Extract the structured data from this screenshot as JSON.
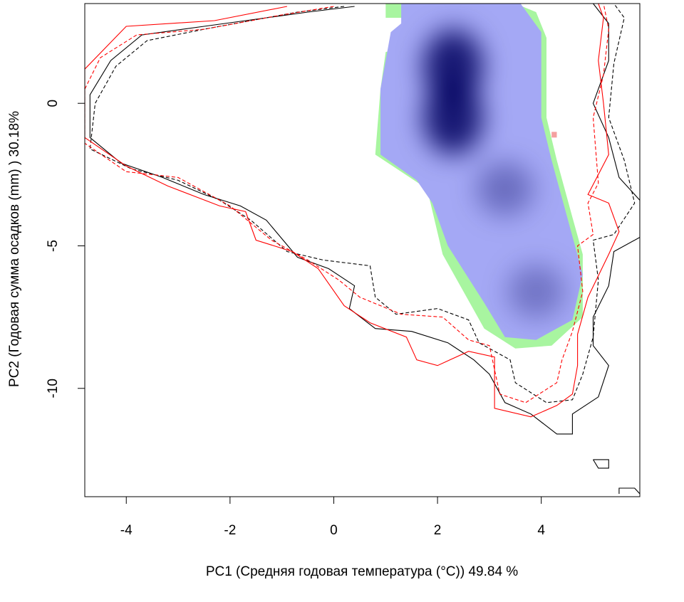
{
  "chart_data": {
    "type": "heatmap",
    "title": "",
    "xlabel": "PC1 (Средняя годовая температура (°C)) 49.84 %",
    "ylabel": "PC2 (Годовая сумма осадков  (mm) ) 30.18%",
    "xlim": [
      -4.8,
      5.9
    ],
    "ylim": [
      -13.8,
      3.5
    ],
    "x_ticks": [
      {
        "value": -4,
        "label": "-4"
      },
      {
        "value": -2,
        "label": "-2"
      },
      {
        "value": 0,
        "label": "0"
      },
      {
        "value": 2,
        "label": "2"
      },
      {
        "value": 4,
        "label": "4"
      }
    ],
    "y_ticks": [
      {
        "value": 0,
        "label": "0"
      },
      {
        "value": -5,
        "label": "-5"
      },
      {
        "value": -10,
        "label": "-10"
      }
    ],
    "grid": false,
    "legend": "none",
    "density_peaks": [
      {
        "x": 2.3,
        "y": 1.3,
        "intensity": 1.0
      },
      {
        "x": 2.3,
        "y": -0.5,
        "intensity": 1.0
      },
      {
        "x": 3.3,
        "y": -3.0,
        "intensity": 0.35
      },
      {
        "x": 3.9,
        "y": -6.6,
        "intensity": 0.3
      }
    ],
    "regions": [
      {
        "name": "overlap-zone",
        "color": "#a8f5a0",
        "points": [
          [
            0.5,
            3.5
          ],
          [
            1.0,
            3.5
          ],
          [
            1.0,
            3.0
          ],
          [
            1.5,
            3.0
          ],
          [
            1.4,
            2.0
          ],
          [
            1.0,
            1.8
          ],
          [
            0.9,
            0.5
          ],
          [
            0.8,
            -1.8
          ],
          [
            1.8,
            -3.0
          ],
          [
            2.1,
            -5.3
          ],
          [
            2.9,
            -7.9
          ],
          [
            3.5,
            -8.6
          ],
          [
            4.2,
            -8.5
          ],
          [
            4.8,
            -7.5
          ],
          [
            4.8,
            -5.3
          ],
          [
            4.6,
            -4.0
          ],
          [
            4.3,
            -2.0
          ],
          [
            4.1,
            -0.5
          ],
          [
            4.1,
            1.0
          ],
          [
            4.1,
            2.3
          ],
          [
            3.9,
            3.2
          ],
          [
            3.5,
            3.5
          ],
          [
            0.5,
            3.5
          ]
        ]
      },
      {
        "name": "density-zone",
        "color": "#a4a8f5",
        "points": [
          [
            0.9,
            3.5
          ],
          [
            1.3,
            3.5
          ],
          [
            1.3,
            2.8
          ],
          [
            1.1,
            2.5
          ],
          [
            0.9,
            0.5
          ],
          [
            0.9,
            -1.8
          ],
          [
            1.6,
            -2.7
          ],
          [
            1.9,
            -3.5
          ],
          [
            2.2,
            -5.0
          ],
          [
            2.9,
            -7.0
          ],
          [
            3.3,
            -8.2
          ],
          [
            3.9,
            -8.3
          ],
          [
            4.6,
            -7.6
          ],
          [
            4.8,
            -6.0
          ],
          [
            4.5,
            -4.0
          ],
          [
            4.2,
            -2.0
          ],
          [
            4.0,
            -0.5
          ],
          [
            4.0,
            1.0
          ],
          [
            4.0,
            2.5
          ],
          [
            3.6,
            3.5
          ],
          [
            0.9,
            3.5
          ]
        ]
      },
      {
        "name": "pink-marks",
        "color": "#f4a0a0",
        "points": [
          [
            4.2,
            -1.0
          ],
          [
            4.3,
            -1.0
          ],
          [
            4.3,
            -1.2
          ],
          [
            4.2,
            -1.2
          ]
        ]
      }
    ],
    "series": [
      {
        "color": "#000000",
        "style": "solid",
        "points": [
          [
            0.4,
            3.4
          ],
          [
            -0.5,
            3.2
          ],
          [
            -2.5,
            2.7
          ],
          [
            -3.7,
            2.4
          ],
          [
            -4.3,
            1.5
          ],
          [
            -4.7,
            0.3
          ],
          [
            -4.7,
            -1.2
          ],
          [
            -4.1,
            -2.1
          ],
          [
            -3.3,
            -2.6
          ],
          [
            -2.5,
            -3.2
          ],
          [
            -1.8,
            -3.6
          ],
          [
            -1.3,
            -4.1
          ],
          [
            -0.7,
            -5.4
          ],
          [
            -0.1,
            -5.8
          ],
          [
            0.4,
            -6.4
          ],
          [
            0.3,
            -7.2
          ],
          [
            0.8,
            -7.9
          ],
          [
            1.5,
            -8.0
          ],
          [
            2.2,
            -8.4
          ],
          [
            2.7,
            -9.0
          ],
          [
            3.0,
            -9.5
          ],
          [
            3.3,
            -10.5
          ],
          [
            3.8,
            -10.9
          ],
          [
            4.3,
            -11.6
          ],
          [
            4.6,
            -11.6
          ],
          [
            4.6,
            -10.9
          ],
          [
            5.1,
            -10.3
          ],
          [
            5.3,
            -9.2
          ],
          [
            5.0,
            -8.5
          ],
          [
            5.0,
            -7.5
          ],
          [
            5.3,
            -6.4
          ],
          [
            5.4,
            -5.2
          ],
          [
            5.9,
            -4.7
          ],
          [
            5.9,
            -3.4
          ],
          [
            5.5,
            -2.6
          ],
          [
            5.3,
            -1.2
          ],
          [
            5.0,
            0.0
          ],
          [
            5.3,
            1.5
          ],
          [
            5.3,
            2.8
          ],
          [
            5.0,
            3.5
          ]
        ]
      },
      {
        "color": "#000000",
        "style": "dashed",
        "points": [
          [
            0.2,
            3.4
          ],
          [
            -0.7,
            3.2
          ],
          [
            -2.5,
            2.6
          ],
          [
            -3.6,
            2.2
          ],
          [
            -4.2,
            1.3
          ],
          [
            -4.6,
            0.0
          ],
          [
            -4.7,
            -1.6
          ],
          [
            -3.9,
            -2.3
          ],
          [
            -3.0,
            -2.7
          ],
          [
            -2.2,
            -3.4
          ],
          [
            -1.6,
            -4.1
          ],
          [
            -0.9,
            -5.2
          ],
          [
            -0.2,
            -5.5
          ],
          [
            0.7,
            -5.7
          ],
          [
            0.8,
            -6.8
          ],
          [
            1.2,
            -7.4
          ],
          [
            2.0,
            -7.2
          ],
          [
            2.6,
            -7.6
          ],
          [
            2.8,
            -8.4
          ],
          [
            3.4,
            -9.0
          ],
          [
            3.5,
            -9.8
          ],
          [
            4.1,
            -10.5
          ],
          [
            4.6,
            -10.4
          ],
          [
            4.8,
            -9.5
          ],
          [
            5.0,
            -8.2
          ],
          [
            5.1,
            -6.2
          ],
          [
            5.0,
            -4.8
          ],
          [
            5.4,
            -4.6
          ],
          [
            5.8,
            -3.5
          ],
          [
            5.6,
            -2.0
          ],
          [
            5.3,
            -0.5
          ],
          [
            5.4,
            1.4
          ],
          [
            5.6,
            3.0
          ],
          [
            5.4,
            3.5
          ]
        ]
      },
      {
        "color": "#ff0000",
        "style": "solid",
        "points": [
          [
            -0.9,
            3.4
          ],
          [
            -2.3,
            2.9
          ],
          [
            -4.0,
            2.7
          ],
          [
            -4.8,
            1.2
          ],
          [
            -4.8,
            -1.2
          ],
          [
            -4.0,
            -2.2
          ],
          [
            -3.2,
            -2.9
          ],
          [
            -2.2,
            -3.6
          ],
          [
            -1.7,
            -3.8
          ],
          [
            -1.5,
            -4.8
          ],
          [
            -0.8,
            -5.2
          ],
          [
            -0.3,
            -5.8
          ],
          [
            0.2,
            -7.1
          ],
          [
            0.7,
            -7.7
          ],
          [
            1.4,
            -8.2
          ],
          [
            1.6,
            -9.0
          ],
          [
            2.0,
            -9.2
          ],
          [
            2.6,
            -8.7
          ],
          [
            3.1,
            -8.9
          ],
          [
            3.1,
            -10.7
          ],
          [
            3.8,
            -11.0
          ],
          [
            4.3,
            -10.6
          ],
          [
            4.6,
            -10.2
          ],
          [
            4.7,
            -9.2
          ],
          [
            4.7,
            -8.1
          ],
          [
            4.9,
            -6.8
          ],
          [
            5.3,
            -5.3
          ],
          [
            5.5,
            -4.5
          ],
          [
            5.3,
            -3.5
          ],
          [
            4.9,
            -3.2
          ],
          [
            5.3,
            -1.8
          ],
          [
            5.2,
            0.0
          ],
          [
            5.1,
            1.5
          ],
          [
            5.2,
            3.0
          ],
          [
            5.1,
            3.5
          ]
        ]
      },
      {
        "color": "#ff0000",
        "style": "dashed",
        "points": [
          [
            0.0,
            3.4
          ],
          [
            -1.0,
            3.1
          ],
          [
            -2.5,
            2.6
          ],
          [
            -3.8,
            2.4
          ],
          [
            -4.5,
            1.6
          ],
          [
            -4.8,
            0.5
          ],
          [
            -4.8,
            -1.4
          ],
          [
            -4.0,
            -2.4
          ],
          [
            -3.0,
            -2.6
          ],
          [
            -2.0,
            -3.6
          ],
          [
            -1.2,
            -4.8
          ],
          [
            -0.5,
            -5.5
          ],
          [
            0.1,
            -6.2
          ],
          [
            0.5,
            -6.8
          ],
          [
            1.3,
            -7.4
          ],
          [
            2.1,
            -7.5
          ],
          [
            2.6,
            -8.3
          ],
          [
            3.0,
            -8.5
          ],
          [
            3.2,
            -10.2
          ],
          [
            3.7,
            -10.5
          ],
          [
            4.3,
            -9.8
          ],
          [
            4.4,
            -9.0
          ],
          [
            4.6,
            -8.0
          ],
          [
            4.8,
            -6.6
          ],
          [
            4.7,
            -5.0
          ],
          [
            5.0,
            -4.6
          ],
          [
            4.9,
            -3.5
          ],
          [
            5.1,
            -2.8
          ],
          [
            5.0,
            -0.5
          ],
          [
            5.2,
            1.0
          ],
          [
            5.3,
            2.6
          ],
          [
            5.2,
            3.5
          ]
        ]
      },
      {
        "color": "#000000",
        "style": "solid",
        "points": [
          [
            5.0,
            -12.5
          ],
          [
            5.3,
            -12.5
          ],
          [
            5.3,
            -12.8
          ],
          [
            5.1,
            -12.8
          ],
          [
            5.0,
            -12.5
          ]
        ]
      },
      {
        "color": "#000000",
        "style": "solid",
        "points": [
          [
            5.5,
            -13.7
          ],
          [
            5.5,
            -13.5
          ],
          [
            5.8,
            -13.5
          ],
          [
            5.9,
            -13.7
          ]
        ]
      }
    ]
  }
}
